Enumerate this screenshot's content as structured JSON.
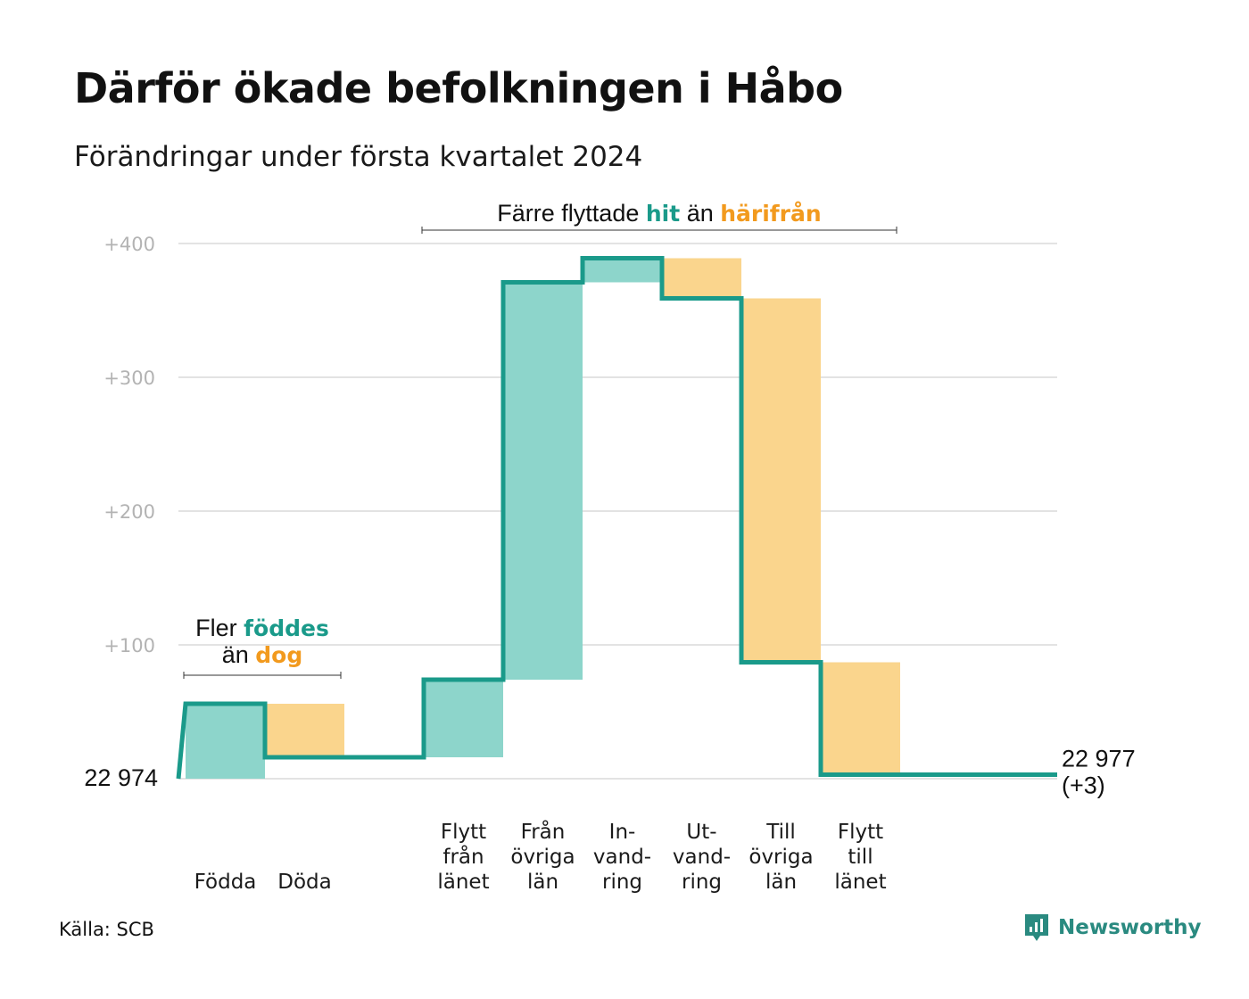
{
  "title": "Därför ökade befolkningen i Håbo",
  "subtitle": "Förändringar under första kvartalet 2024",
  "source": "Källa: SCB",
  "brand": {
    "name": "Newsworthy",
    "icon": "newsworthy-logo-icon"
  },
  "colors": {
    "line": "#1a9a8a",
    "positive": "#8dd5cb",
    "negative": "#fad58d",
    "teal_text": "#1a9a8a",
    "orange_text": "#f29a1e",
    "grid": "#e3e3e3"
  },
  "chart_data": {
    "type": "waterfall",
    "title": "Därför ökade befolkningen i Håbo",
    "subtitle": "Förändringar under första kvartalet 2024",
    "y_ticks": [
      {
        "value": 100,
        "label": "+100"
      },
      {
        "value": 200,
        "label": "+200"
      },
      {
        "value": 300,
        "label": "+300"
      },
      {
        "value": 400,
        "label": "+400"
      }
    ],
    "ylim": [
      0,
      400
    ],
    "grid": true,
    "start": {
      "value": 0,
      "label": "22  974"
    },
    "end": {
      "value": 3,
      "label_line1": "22 977",
      "label_line2": "(+3)"
    },
    "steps": [
      {
        "category": [
          "Födda"
        ],
        "delta": 56
      },
      {
        "category": [
          "Döda"
        ],
        "delta": -40
      },
      {
        "category": [],
        "delta": 0
      },
      {
        "category": [
          "Flytt",
          "från",
          "länet"
        ],
        "delta": 58
      },
      {
        "category": [
          "Från",
          "övriga",
          "län"
        ],
        "delta": 297
      },
      {
        "category": [
          "In-",
          "vand-",
          "ring"
        ],
        "delta": 18
      },
      {
        "category": [
          "Ut-",
          "vand-",
          "ring"
        ],
        "delta": -30
      },
      {
        "category": [
          "Till",
          "övriga",
          "län"
        ],
        "delta": -272
      },
      {
        "category": [
          "Flytt",
          "till",
          "länet"
        ],
        "delta": -84
      },
      {
        "category": [],
        "delta": 0
      }
    ],
    "annotations": [
      {
        "line1": [
          {
            "text": "Fler ",
            "style": "plain"
          },
          {
            "text": "föddes",
            "style": "teal"
          }
        ],
        "line2": [
          {
            "text": "än ",
            "style": "plain"
          },
          {
            "text": "dog",
            "style": "orange"
          }
        ],
        "from_step": 0,
        "to_step": 1
      },
      {
        "line1": [
          {
            "text": "Färre flyttade ",
            "style": "plain"
          },
          {
            "text": "hit",
            "style": "teal"
          },
          {
            "text": " än ",
            "style": "plain"
          },
          {
            "text": "härifrån",
            "style": "orange"
          }
        ],
        "from_step": 3,
        "to_step": 8
      }
    ]
  }
}
